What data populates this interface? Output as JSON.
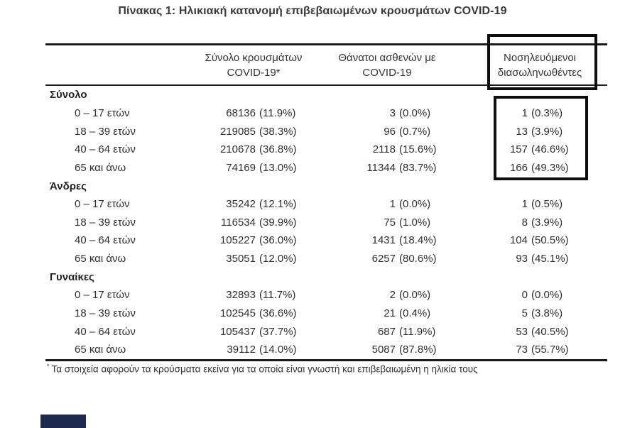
{
  "title": "Πίνακας 1: Ηλικιακή κατανομή επιβεβαιωμένων κρουσμάτων COVID-19",
  "table": {
    "columns": [
      {
        "line1": "Σύνολο κρουσμάτων",
        "line2": "COVID-19*"
      },
      {
        "line1": "Θάνατοι ασθενών με",
        "line2": "COVID-19"
      },
      {
        "line1": "Νοσηλευόμενοι",
        "line2": "διασωληνωθέντες",
        "highlighted": true
      }
    ],
    "groups": [
      {
        "name": "Σύνολο",
        "highlighted_intubated": true,
        "rows": [
          {
            "label": "0 – 17 ετών",
            "cases": "68136",
            "cases_pct": "(11.9%)",
            "deaths": "3",
            "deaths_pct": "(0.0%)",
            "intubated": "1",
            "intubated_pct": "(0.3%)"
          },
          {
            "label": "18 – 39 ετών",
            "cases": "219085",
            "cases_pct": "(38.3%)",
            "deaths": "96",
            "deaths_pct": "(0.7%)",
            "intubated": "13",
            "intubated_pct": "(3.9%)"
          },
          {
            "label": "40 – 64 ετών",
            "cases": "210678",
            "cases_pct": "(36.8%)",
            "deaths": "2118",
            "deaths_pct": "(15.6%)",
            "intubated": "157",
            "intubated_pct": "(46.6%)"
          },
          {
            "label": "65 και άνω",
            "cases": "74169",
            "cases_pct": "(13.0%)",
            "deaths": "11344",
            "deaths_pct": "(83.7%)",
            "intubated": "166",
            "intubated_pct": "(49.3%)"
          }
        ]
      },
      {
        "name": "Άνδρες",
        "rows": [
          {
            "label": "0 – 17 ετών",
            "cases": "35242",
            "cases_pct": "(12.1%)",
            "deaths": "1",
            "deaths_pct": "(0.0%)",
            "intubated": "1",
            "intubated_pct": "(0.5%)"
          },
          {
            "label": "18 – 39 ετών",
            "cases": "116534",
            "cases_pct": "(39.9%)",
            "deaths": "75",
            "deaths_pct": "(1.0%)",
            "intubated": "8",
            "intubated_pct": "(3.9%)"
          },
          {
            "label": "40 – 64 ετών",
            "cases": "105227",
            "cases_pct": "(36.0%)",
            "deaths": "1431",
            "deaths_pct": "(18.4%)",
            "intubated": "104",
            "intubated_pct": "(50.5%)"
          },
          {
            "label": "65 και άνω",
            "cases": "35051",
            "cases_pct": "(12.0%)",
            "deaths": "6257",
            "deaths_pct": "(80.6%)",
            "intubated": "93",
            "intubated_pct": "(45.1%)"
          }
        ]
      },
      {
        "name": "Γυναίκες",
        "rows": [
          {
            "label": "0 – 17 ετών",
            "cases": "32893",
            "cases_pct": "(11.7%)",
            "deaths": "2",
            "deaths_pct": "(0.0%)",
            "intubated": "0",
            "intubated_pct": "(0.0%)"
          },
          {
            "label": "18 – 39 ετών",
            "cases": "102545",
            "cases_pct": "(36.6%)",
            "deaths": "21",
            "deaths_pct": "(0.4%)",
            "intubated": "5",
            "intubated_pct": "(3.8%)"
          },
          {
            "label": "40 – 64 ετών",
            "cases": "105437",
            "cases_pct": "(37.7%)",
            "deaths": "687",
            "deaths_pct": "(11.9%)",
            "intubated": "53",
            "intubated_pct": "(40.5%)"
          },
          {
            "label": "65 και άνω",
            "cases": "39112",
            "cases_pct": "(14.0%)",
            "deaths": "5087",
            "deaths_pct": "(87.8%)",
            "intubated": "73",
            "intubated_pct": "(55.7%)"
          }
        ]
      }
    ]
  },
  "footnote": {
    "marker": "*",
    "text": "Τα στοιχεία αφορούν τα κρούσματα εκείνα για τα οποία είναι γνωστή και επιβεβαιωμένη η ηλικία τους"
  },
  "colors": {
    "highlight_box_border": "#0e0e0e",
    "footer_bar": "#1c2b4d",
    "rule": "#1b1b1b"
  }
}
